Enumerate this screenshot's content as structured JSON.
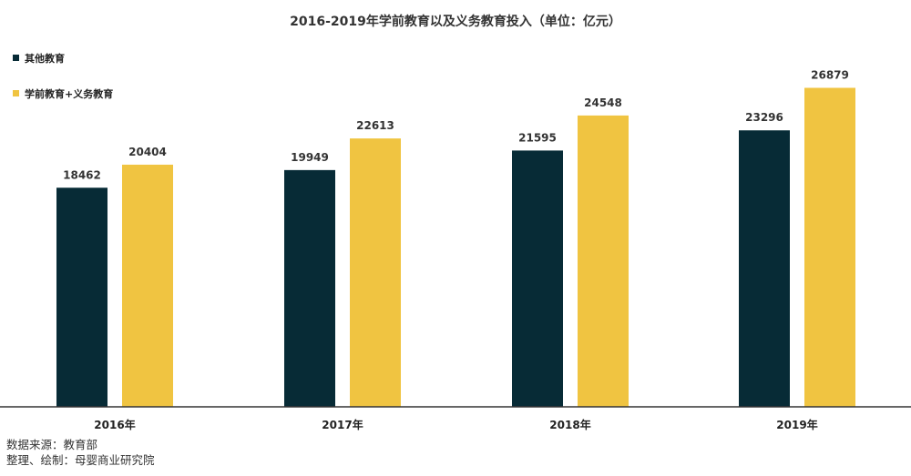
{
  "chart_data": {
    "type": "bar",
    "title": "2016-2019年学前教育以及义务教育投入（单位：亿元）",
    "categories": [
      "2016年",
      "2017年",
      "2018年",
      "2019年"
    ],
    "series": [
      {
        "name": "其他教育",
        "values": [
          18462,
          19949,
          21595,
          23296
        ],
        "color": "#072b36"
      },
      {
        "name": "学前教育+义务教育",
        "values": [
          20404,
          22613,
          24548,
          26879
        ],
        "color": "#f0c441"
      }
    ],
    "ylim": [
      0,
      30000
    ],
    "grid": false,
    "legend_position": "top-left"
  },
  "footer": {
    "source": "数据来源：教育部",
    "credit": "整理、绘制：母婴商业研究院"
  }
}
